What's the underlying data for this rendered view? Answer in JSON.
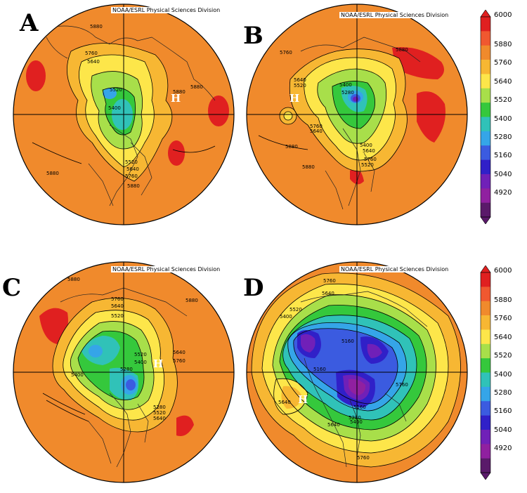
{
  "credit": "NOAA/ESRL Physical Sciences Division",
  "panels": [
    {
      "letter": "A",
      "high_label": "H",
      "contour_labels": [
        "5880",
        "5760",
        "5640",
        "5520",
        "5400",
        "5880",
        "5880",
        "5520",
        "5640",
        "5760",
        "5880",
        "5880"
      ]
    },
    {
      "letter": "B",
      "high_label": "H",
      "contour_labels": [
        "5760",
        "5640",
        "5520",
        "5400",
        "5280",
        "5880",
        "5880",
        "5640",
        "5760",
        "5640",
        "5760",
        "5880",
        "5520",
        "5400"
      ]
    },
    {
      "letter": "C",
      "high_label": "H",
      "contour_labels": [
        "5880",
        "5760",
        "5640",
        "5520",
        "5520",
        "5400",
        "5280",
        "5640",
        "5760",
        "5880",
        "5400",
        "5280",
        "5520",
        "5640"
      ]
    },
    {
      "letter": "D",
      "high_label": "H",
      "contour_labels": [
        "5760",
        "5640",
        "5520",
        "5400",
        "5160",
        "5160",
        "5760",
        "5640",
        "5160",
        "5280",
        "5400",
        "5640",
        "5760"
      ]
    }
  ],
  "colorbar": {
    "ticks": [
      "6000",
      "5880",
      "5760",
      "5640",
      "5520",
      "5400",
      "5280",
      "5160",
      "5040",
      "4920"
    ],
    "colors": [
      "#e02020",
      "#f05830",
      "#f08a2c",
      "#f7b733",
      "#fde64a",
      "#a8df4a",
      "#35c83c",
      "#30c2b8",
      "#35a5e8",
      "#3b5be0",
      "#3020c8",
      "#7020b8",
      "#9020a0",
      "#5a1a6a"
    ]
  }
}
